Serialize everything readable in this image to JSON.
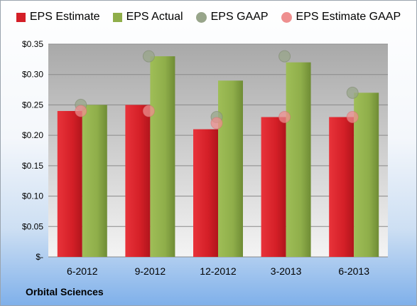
{
  "colors": {
    "estimate": "#d41f27",
    "actual": "#8fae4a",
    "gaap": "#98a58a",
    "estimate_gaap": "#ee8f8f"
  },
  "company": "Orbital Sciences",
  "chart_data": {
    "type": "bar",
    "categories": [
      "6-2012",
      "9-2012",
      "12-2012",
      "3-2013",
      "6-2013"
    ],
    "series": [
      {
        "name": "EPS Estimate",
        "kind": "bar",
        "values": [
          0.24,
          0.25,
          0.21,
          0.23,
          0.23
        ]
      },
      {
        "name": "EPS Actual",
        "kind": "bar",
        "values": [
          0.25,
          0.33,
          0.29,
          0.32,
          0.27
        ]
      },
      {
        "name": "EPS GAAP",
        "kind": "marker",
        "values": [
          0.25,
          0.33,
          0.23,
          0.33,
          0.27
        ]
      },
      {
        "name": "EPS Estimate GAAP",
        "kind": "marker",
        "values": [
          0.24,
          0.24,
          0.22,
          0.23,
          0.23
        ]
      }
    ],
    "ylim": [
      0,
      0.35
    ],
    "yticks": [
      0,
      0.05,
      0.1,
      0.15,
      0.2,
      0.25,
      0.3,
      0.35
    ],
    "ytick_labels": [
      "$-",
      "$0.05",
      "$0.10",
      "$0.15",
      "$0.20",
      "$0.25",
      "$0.30",
      "$0.35"
    ],
    "grid": true,
    "legend_position": "top"
  }
}
